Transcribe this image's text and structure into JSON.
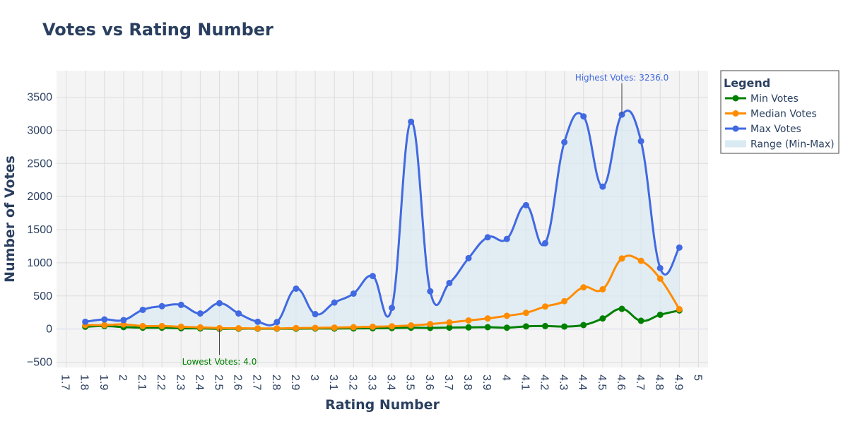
{
  "chart_data": {
    "type": "line",
    "title": "Votes vs Rating Number",
    "xlabel": "Rating Number",
    "ylabel": "Number of Votes",
    "xlim": [
      1.65,
      5.05
    ],
    "ylim": [
      -580,
      3900
    ],
    "x_ticks": [
      "1.7",
      "1.8",
      "1.9",
      "2",
      "2.1",
      "2.2",
      "2.3",
      "2.4",
      "2.5",
      "2.6",
      "2.7",
      "2.8",
      "2.9",
      "3",
      "3.1",
      "3.2",
      "3.3",
      "3.4",
      "3.5",
      "3.6",
      "3.7",
      "3.8",
      "3.9",
      "4",
      "4.1",
      "4.2",
      "4.3",
      "4.4",
      "4.5",
      "4.6",
      "4.7",
      "4.8",
      "4.9",
      "5"
    ],
    "y_ticks": [
      "−500",
      "0",
      "500",
      "1000",
      "1500",
      "2000",
      "2500",
      "3000",
      "3500"
    ],
    "grid": true,
    "x": [
      1.8,
      1.9,
      2.0,
      2.1,
      2.2,
      2.3,
      2.4,
      2.5,
      2.6,
      2.7,
      2.8,
      2.9,
      3.0,
      3.1,
      3.2,
      3.3,
      3.4,
      3.5,
      3.6,
      3.7,
      3.8,
      3.9,
      4.0,
      4.1,
      4.2,
      4.3,
      4.4,
      4.5,
      4.6,
      4.7,
      4.8,
      4.9
    ],
    "series": [
      {
        "name": "Min Votes",
        "color": "#008000",
        "values": [
          35,
          45,
          30,
          20,
          20,
          12,
          10,
          4,
          6,
          6,
          6,
          6,
          8,
          8,
          10,
          12,
          15,
          20,
          18,
          22,
          25,
          28,
          20,
          40,
          45,
          38,
          60,
          160,
          305,
          125,
          215,
          280
        ]
      },
      {
        "name": "Median Votes",
        "color": "#ff8c00",
        "values": [
          60,
          60,
          70,
          45,
          45,
          35,
          25,
          15,
          12,
          10,
          10,
          15,
          18,
          22,
          28,
          35,
          42,
          55,
          75,
          100,
          130,
          160,
          200,
          245,
          340,
          420,
          630,
          600,
          1065,
          1030,
          760,
          300
        ]
      },
      {
        "name": "Max Votes",
        "color": "#4169e1",
        "values": [
          110,
          145,
          135,
          290,
          345,
          365,
          235,
          390,
          235,
          110,
          105,
          610,
          225,
          400,
          535,
          800,
          320,
          3130,
          570,
          695,
          1070,
          1385,
          1360,
          1870,
          1295,
          2820,
          3210,
          2150,
          3236,
          2835,
          920,
          1230
        ]
      }
    ],
    "range_fill": {
      "name": "Range (Min-Max)",
      "color": "#d9eaf2"
    },
    "annotations": [
      {
        "text": "Highest Votes: 3236.0",
        "x": 4.6,
        "y": 3236,
        "color": "#4169e1"
      },
      {
        "text": "Lowest Votes: 4.0",
        "x": 2.5,
        "y": 4,
        "color": "#008000"
      }
    ],
    "legend": {
      "title": "Legend",
      "placement": "right-top"
    }
  }
}
